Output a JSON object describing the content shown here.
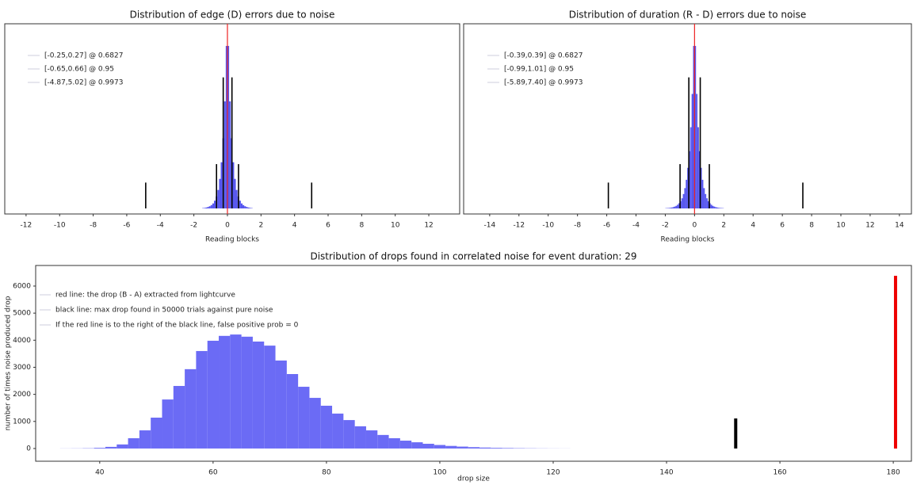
{
  "chart_data": [
    {
      "type": "histogram",
      "title": "Distribution of edge (D) errors due to noise",
      "xlabel": "Reading blocks",
      "xlim": [
        -13.27,
        13.84
      ],
      "xticks": [
        -12,
        -10,
        -8,
        -6,
        -4,
        -2,
        0,
        2,
        4,
        6,
        8,
        10,
        12
      ],
      "ylim": [
        -0.03,
        1
      ],
      "color": "#5555ee",
      "center": 0,
      "center_color": "#ee2222",
      "bins": [
        -1.5,
        -1.4,
        -1.3,
        -1.2,
        -1.1,
        -1.0,
        -0.9,
        -0.8,
        -0.7,
        -0.6,
        -0.5,
        -0.4,
        -0.3,
        -0.2,
        -0.1,
        0,
        0.1,
        0.2,
        0.3,
        0.4,
        0.5,
        0.6,
        0.7,
        0.8,
        0.9,
        1.0,
        1.1,
        1.2,
        1.3,
        1.4,
        1.5
      ],
      "counts": [
        0.002,
        0.003,
        0.005,
        0.008,
        0.012,
        0.018,
        0.027,
        0.042,
        0.065,
        0.1,
        0.16,
        0.25,
        0.38,
        0.58,
        0.88,
        0.88,
        0.58,
        0.38,
        0.25,
        0.16,
        0.1,
        0.065,
        0.042,
        0.027,
        0.018,
        0.012,
        0.008,
        0.005,
        0.003,
        0.002
      ],
      "intervals": [
        {
          "low": -0.25,
          "high": 0.27,
          "prob": 0.6827,
          "height": 0.71,
          "label": "[-0.25,0.27] @ 0.6827"
        },
        {
          "low": -0.65,
          "high": 0.66,
          "prob": 0.95,
          "height": 0.24,
          "label": "[-0.65,0.66] @ 0.95"
        },
        {
          "low": -4.87,
          "high": 5.02,
          "prob": 0.9973,
          "height": 0.14,
          "label": "[-4.87,5.02] @ 0.9973"
        }
      ]
    },
    {
      "type": "histogram",
      "title": "Distribution of duration (R - D) errors due to noise",
      "xlabel": "Reading blocks",
      "xlim": [
        -15.78,
        14.82
      ],
      "xticks": [
        -14,
        -12,
        -10,
        -8,
        -6,
        -4,
        -2,
        0,
        2,
        4,
        6,
        8,
        10,
        12,
        14
      ],
      "ylim": [
        -0.03,
        1
      ],
      "color": "#5555ee",
      "center": 0,
      "center_color": "#ee2222",
      "bins": [
        -2.0,
        -1.9,
        -1.8,
        -1.7,
        -1.6,
        -1.5,
        -1.4,
        -1.3,
        -1.2,
        -1.1,
        -1.0,
        -0.9,
        -0.8,
        -0.7,
        -0.6,
        -0.5,
        -0.4,
        -0.3,
        -0.2,
        -0.1,
        0,
        0.1,
        0.2,
        0.3,
        0.4,
        0.5,
        0.6,
        0.7,
        0.8,
        0.9,
        1.0,
        1.1,
        1.2,
        1.3,
        1.4,
        1.5,
        1.6,
        1.7,
        1.8,
        1.9,
        2.0
      ],
      "counts": [
        0.0015,
        0.002,
        0.0025,
        0.0035,
        0.005,
        0.007,
        0.01,
        0.014,
        0.02,
        0.028,
        0.039,
        0.055,
        0.078,
        0.11,
        0.155,
        0.22,
        0.31,
        0.44,
        0.62,
        0.88,
        0.88,
        0.62,
        0.44,
        0.31,
        0.22,
        0.155,
        0.11,
        0.078,
        0.055,
        0.039,
        0.028,
        0.02,
        0.014,
        0.01,
        0.007,
        0.005,
        0.0035,
        0.0025,
        0.002,
        0.0015
      ],
      "intervals": [
        {
          "low": -0.39,
          "high": 0.39,
          "prob": 0.6827,
          "height": 0.71,
          "label": "[-0.39,0.39] @ 0.6827"
        },
        {
          "low": -0.99,
          "high": 1.01,
          "prob": 0.95,
          "height": 0.24,
          "label": "[-0.99,1.01] @ 0.95"
        },
        {
          "low": -5.89,
          "high": 7.4,
          "prob": 0.9973,
          "height": 0.14,
          "label": "[-5.89,7.40] @ 0.9973"
        }
      ]
    },
    {
      "type": "histogram",
      "title": "Distribution of drops found in correlated noise for event duration: 29",
      "xlabel": "drop size",
      "ylabel": "number of times noise produced drop",
      "xlim": [
        28.7,
        183.2
      ],
      "xticks": [
        40,
        60,
        80,
        100,
        120,
        140,
        160,
        180
      ],
      "ylim": [
        -470,
        6760
      ],
      "yticks": [
        0,
        1000,
        2000,
        3000,
        4000,
        5000,
        6000
      ],
      "color": "#6b6bf5",
      "bins": [
        33,
        35,
        37,
        39,
        41,
        43,
        45,
        47,
        49,
        51,
        53,
        55,
        57,
        59,
        61,
        63,
        65,
        67,
        69,
        71,
        73,
        75,
        77,
        79,
        81,
        83,
        85,
        87,
        89,
        91,
        93,
        95,
        97,
        99,
        101,
        103,
        105,
        107,
        109,
        111,
        113,
        115,
        117,
        119,
        121,
        123
      ],
      "counts": [
        3,
        5,
        10,
        25,
        60,
        150,
        380,
        670,
        1140,
        1810,
        2310,
        2930,
        3600,
        3980,
        4160,
        4210,
        4130,
        3950,
        3800,
        3250,
        2750,
        2280,
        1870,
        1580,
        1290,
        1050,
        820,
        670,
        500,
        380,
        290,
        230,
        175,
        130,
        95,
        70,
        50,
        35,
        25,
        18,
        12,
        8,
        5,
        3,
        2
      ],
      "lines": [
        {
          "x": 152.2,
          "y": 1110,
          "color": "#000000"
        },
        {
          "x": 180.4,
          "y": 6380,
          "color": "#ee0000"
        }
      ],
      "legend": [
        "red line: the drop (B - A) extracted from lightcurve",
        "black line: max drop found in 50000 trials against pure noise",
        "If the red line is to the right of the black line, false positive prob = 0"
      ]
    }
  ]
}
